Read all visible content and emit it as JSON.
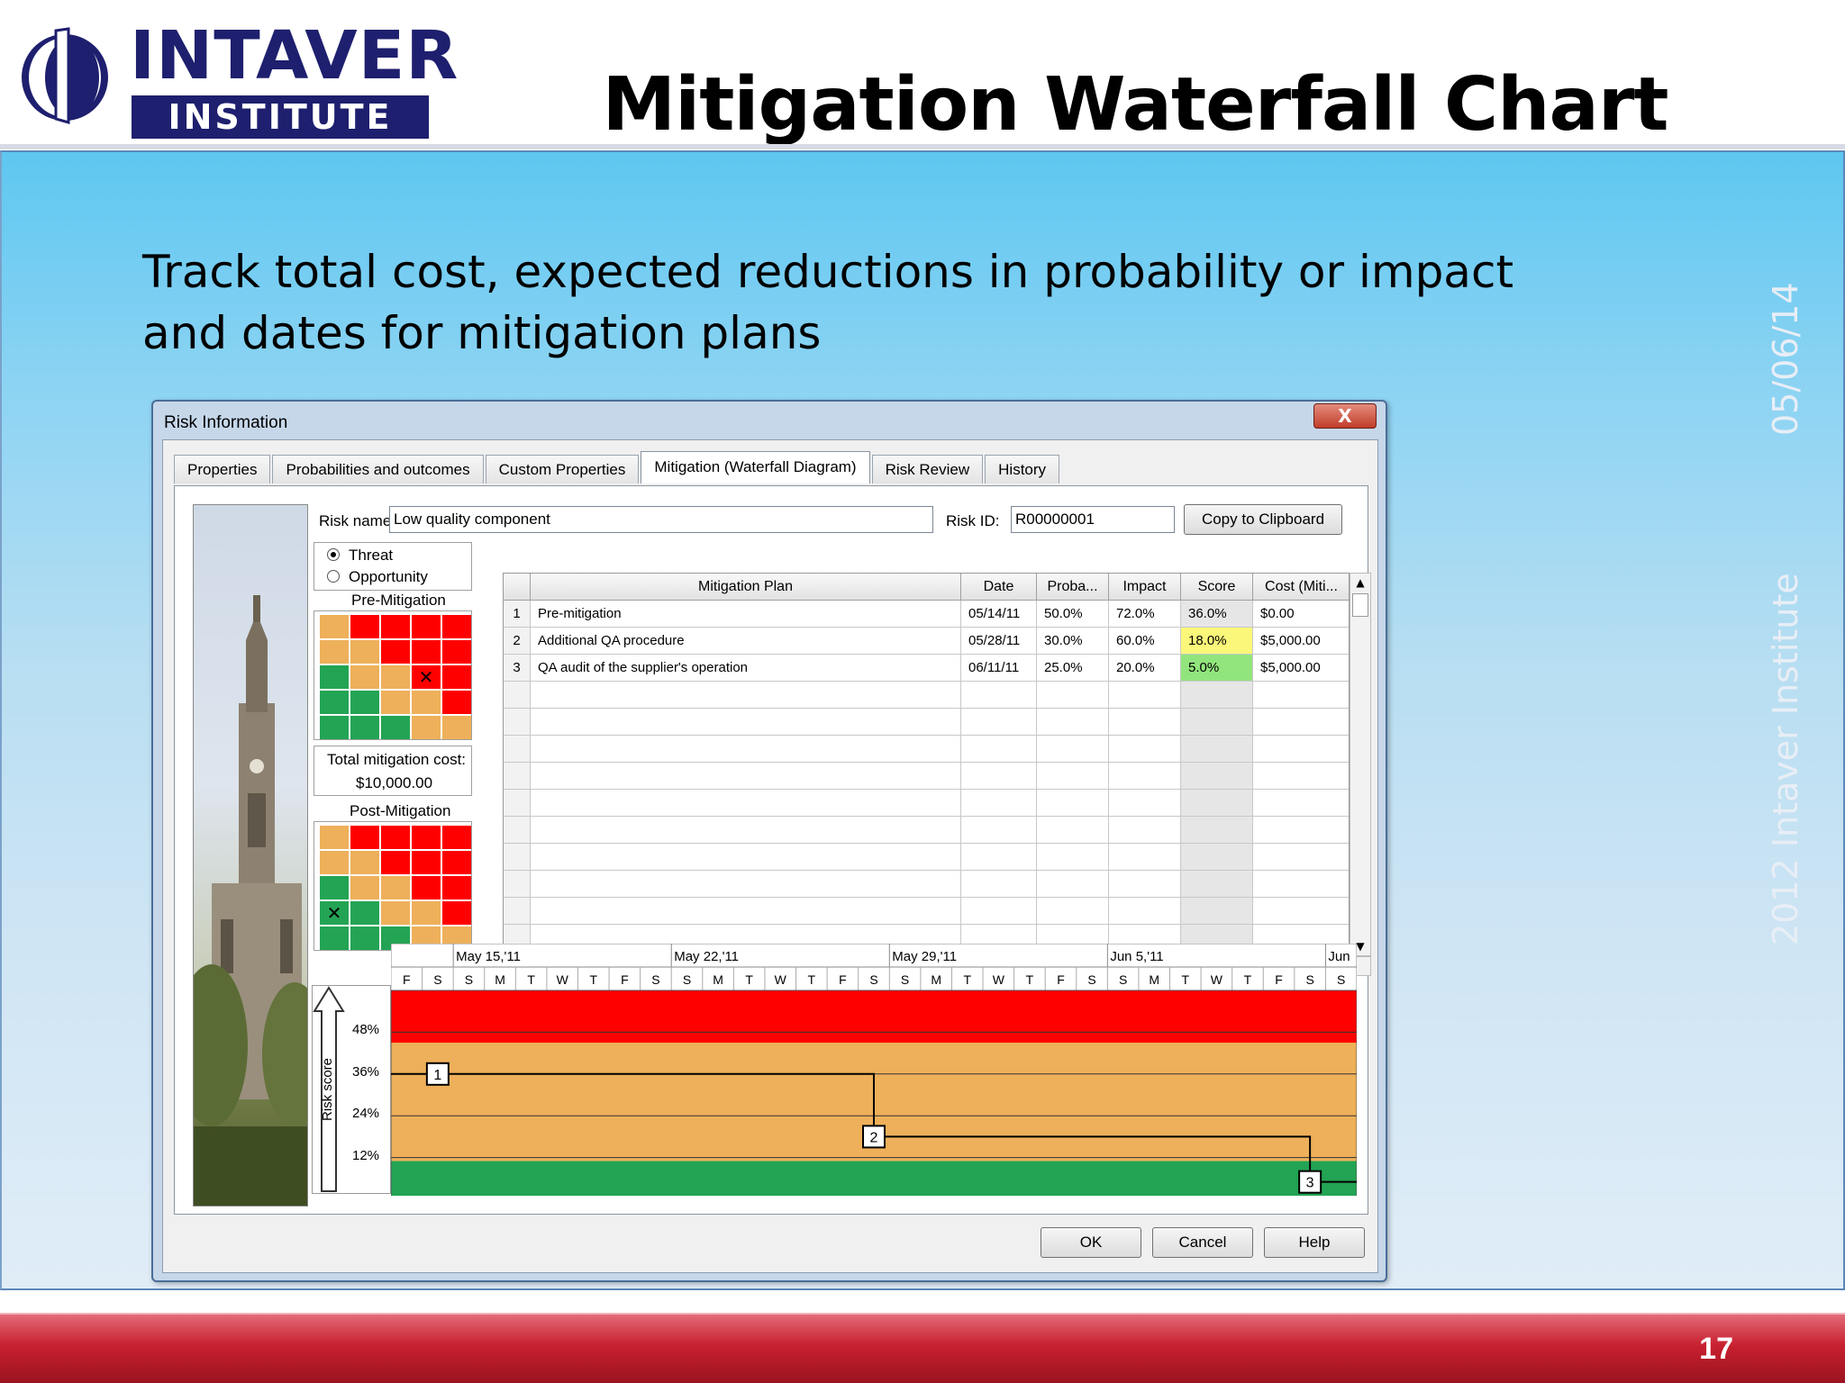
{
  "logo": {
    "top": "INTAVER",
    "bottom": "INSTITUTE"
  },
  "slide": {
    "title": "Mitigation Waterfall Chart",
    "subtitle": "Track total cost, expected reductions in probability or impact and dates for mitigation plans",
    "side_date": "05/06/14",
    "side_copyright": "2012 Intaver Institute",
    "page_number": "17"
  },
  "dialog": {
    "title": "Risk Information",
    "close_label": "X",
    "tabs": [
      "Properties",
      "Probabilities and outcomes",
      "Custom Properties",
      "Mitigation (Waterfall Diagram)",
      "Risk Review",
      "History"
    ],
    "active_tab": 3,
    "risk_name_label": "Risk name:",
    "risk_name_value": "Low quality component",
    "risk_id_label": "Risk ID:",
    "risk_id_value": "R00000001",
    "copy_button": "Copy to Clipboard",
    "threat_label": "Threat",
    "opportunity_label": "Opportunity",
    "pre_mitigation_label": "Pre-Mitigation",
    "post_mitigation_label": "Post-Mitigation",
    "total_cost_label": "Total mitigation cost:",
    "total_cost_value": "$10,000.00",
    "buttons": {
      "ok": "OK",
      "cancel": "Cancel",
      "help": "Help"
    }
  },
  "colors": {
    "red": "#ff0000",
    "orange": "#eeb05a",
    "green": "#23a454",
    "yellow": "#fbf77a",
    "lightgreen": "#92e57c"
  },
  "pre_matrix": [
    [
      "o",
      "r",
      "r",
      "r",
      "r"
    ],
    [
      "o",
      "o",
      "r",
      "r",
      "r"
    ],
    [
      "g",
      "o",
      "o",
      "rx",
      "r"
    ],
    [
      "g",
      "g",
      "o",
      "o",
      "r"
    ],
    [
      "g",
      "g",
      "g",
      "o",
      "o"
    ]
  ],
  "post_matrix": [
    [
      "o",
      "r",
      "r",
      "r",
      "r"
    ],
    [
      "o",
      "o",
      "r",
      "r",
      "r"
    ],
    [
      "g",
      "o",
      "o",
      "r",
      "r"
    ],
    [
      "gx",
      "g",
      "o",
      "o",
      "r"
    ],
    [
      "g",
      "g",
      "g",
      "o",
      "o"
    ]
  ],
  "table": {
    "columns": [
      "",
      "Mitigation Plan",
      "Date",
      "Proba...",
      "Impact",
      "Score",
      "Cost (Miti..."
    ],
    "rows": [
      {
        "num": "1",
        "plan": "Pre-mitigation",
        "date": "05/14/11",
        "prob": "50.0%",
        "impact": "72.0%",
        "score": "36.0%",
        "cost": "$0.00",
        "score_color": ""
      },
      {
        "num": "2",
        "plan": "Additional QA procedure",
        "date": "05/28/11",
        "prob": "30.0%",
        "impact": "60.0%",
        "score": "18.0%",
        "cost": "$5,000.00",
        "score_color": "yellow"
      },
      {
        "num": "3",
        "plan": "QA audit of the supplier's operation",
        "date": "06/11/11",
        "prob": "25.0%",
        "impact": "20.0%",
        "score": "5.0%",
        "cost": "$5,000.00",
        "score_color": "lightgreen"
      }
    ],
    "empty_rows": 11
  },
  "chart_data": {
    "type": "line",
    "title": "",
    "ylabel": "Risk score",
    "yticks": [
      "48%",
      "36%",
      "24%",
      "12%"
    ],
    "ytick_values": [
      48,
      36,
      24,
      12
    ],
    "ylim": [
      0,
      60
    ],
    "week_labels": [
      "May 15,'11",
      "May 22,'11",
      "May 29,'11",
      "Jun 5,'11",
      "Jun"
    ],
    "day_labels": [
      "F",
      "S",
      "S",
      "M",
      "T",
      "W",
      "T",
      "F",
      "S",
      "S",
      "M",
      "T",
      "W",
      "T",
      "F",
      "S",
      "S",
      "M",
      "T",
      "W",
      "T",
      "F",
      "S",
      "S",
      "M",
      "T",
      "W",
      "T",
      "F",
      "S",
      "S"
    ],
    "zones": [
      {
        "from": 0,
        "to": 11,
        "color": "green"
      },
      {
        "from": 11,
        "to": 45,
        "color": "orange"
      },
      {
        "from": 45,
        "to": 60,
        "color": "red"
      }
    ],
    "points": [
      {
        "label": "1",
        "x": "05/14/11",
        "y": 36.0
      },
      {
        "label": "2",
        "x": "05/28/11",
        "y": 18.0
      },
      {
        "label": "3",
        "x": "06/11/11",
        "y": 5.0
      }
    ]
  }
}
